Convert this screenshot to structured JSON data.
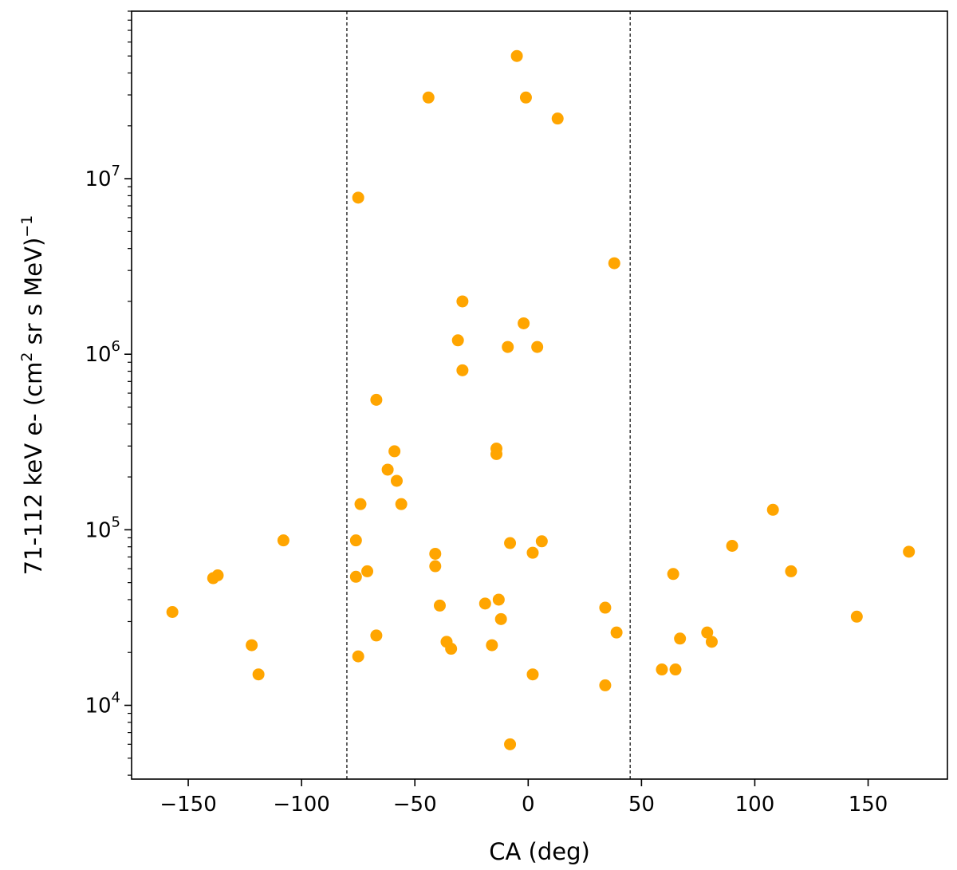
{
  "chart_data": {
    "type": "scatter",
    "title": "",
    "xlabel": "CA (deg)",
    "ylabel": {
      "main": "71-112 keV e- (cm",
      "sup": "2",
      "rest": " sr s MeV)",
      "exp": "−1"
    },
    "x_scale": "linear",
    "y_scale": "log",
    "xlim": [
      -175,
      185
    ],
    "ylim": [
      3800,
      90000000
    ],
    "x_ticks": [
      -150,
      -100,
      -50,
      0,
      50,
      100,
      150
    ],
    "x_tick_labels": [
      "−150",
      "−100",
      "−50",
      "0",
      "50",
      "100",
      "150"
    ],
    "y_ticks": [
      {
        "value": 10000,
        "base": "10",
        "exp": "4"
      },
      {
        "value": 100000,
        "base": "10",
        "exp": "5"
      },
      {
        "value": 1000000,
        "base": "10",
        "exp": "6"
      },
      {
        "value": 10000000,
        "base": "10",
        "exp": "7"
      }
    ],
    "vlines": [
      -80,
      45
    ],
    "grid": false,
    "marker_color": "#ffa500",
    "points": [
      {
        "x": -157,
        "y": 34000
      },
      {
        "x": -139,
        "y": 53000
      },
      {
        "x": -137,
        "y": 55000
      },
      {
        "x": -122,
        "y": 22000
      },
      {
        "x": -119,
        "y": 15000
      },
      {
        "x": -108,
        "y": 87000
      },
      {
        "x": -76,
        "y": 87000
      },
      {
        "x": -76,
        "y": 54000
      },
      {
        "x": -75,
        "y": 7800000
      },
      {
        "x": -75,
        "y": 19000
      },
      {
        "x": -74,
        "y": 140000
      },
      {
        "x": -71,
        "y": 58000
      },
      {
        "x": -67,
        "y": 550000
      },
      {
        "x": -67,
        "y": 25000
      },
      {
        "x": -62,
        "y": 220000
      },
      {
        "x": -59,
        "y": 280000
      },
      {
        "x": -58,
        "y": 190000
      },
      {
        "x": -56,
        "y": 140000
      },
      {
        "x": -44,
        "y": 29000000
      },
      {
        "x": -41,
        "y": 73000
      },
      {
        "x": -41,
        "y": 62000
      },
      {
        "x": -39,
        "y": 37000
      },
      {
        "x": -36,
        "y": 23000
      },
      {
        "x": -34,
        "y": 21000
      },
      {
        "x": -31,
        "y": 1200000
      },
      {
        "x": -29,
        "y": 2000000
      },
      {
        "x": -29,
        "y": 810000
      },
      {
        "x": -19,
        "y": 38000
      },
      {
        "x": -16,
        "y": 22000
      },
      {
        "x": -14,
        "y": 290000
      },
      {
        "x": -14,
        "y": 270000
      },
      {
        "x": -13,
        "y": 40000
      },
      {
        "x": -12,
        "y": 31000
      },
      {
        "x": -9,
        "y": 1100000
      },
      {
        "x": -8,
        "y": 84000
      },
      {
        "x": -8,
        "y": 6000
      },
      {
        "x": -5,
        "y": 50000000
      },
      {
        "x": -2,
        "y": 1500000
      },
      {
        "x": -1,
        "y": 29000000
      },
      {
        "x": 2,
        "y": 74000
      },
      {
        "x": 2,
        "y": 15000
      },
      {
        "x": 4,
        "y": 1100000
      },
      {
        "x": 6,
        "y": 86000
      },
      {
        "x": 13,
        "y": 22000000
      },
      {
        "x": 34,
        "y": 36000
      },
      {
        "x": 34,
        "y": 13000
      },
      {
        "x": 38,
        "y": 3300000
      },
      {
        "x": 39,
        "y": 26000
      },
      {
        "x": 59,
        "y": 16000
      },
      {
        "x": 64,
        "y": 56000
      },
      {
        "x": 65,
        "y": 16000
      },
      {
        "x": 67,
        "y": 24000
      },
      {
        "x": 79,
        "y": 26000
      },
      {
        "x": 81,
        "y": 23000
      },
      {
        "x": 90,
        "y": 81000
      },
      {
        "x": 108,
        "y": 130000
      },
      {
        "x": 116,
        "y": 58000
      },
      {
        "x": 145,
        "y": 32000
      },
      {
        "x": 168,
        "y": 75000
      }
    ]
  }
}
